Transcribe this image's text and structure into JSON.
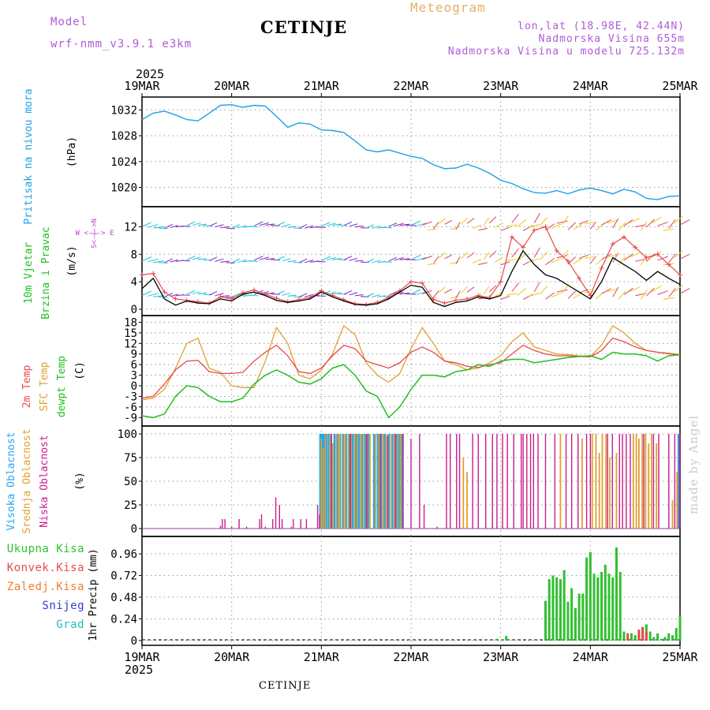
{
  "header": {
    "model_label": "Model",
    "model_run": "wrf-nmm_v3.9.1  e3km",
    "title": "CETINJE",
    "product": "Meteogram",
    "coords": "lon,lat (18.98E, 42.44N)",
    "elevation": "Nadmorska Visina 655m",
    "model_elevation": "Nadmorska Visina u modelu 725.132m"
  },
  "footer": {
    "station": "CETINJE"
  },
  "credit": "made by Angel",
  "colors": {
    "pressure": "#1ea0e6",
    "temp2m": "#e84a4a",
    "sfc": "#e0a030",
    "dewpt": "#20c020",
    "high_cloud": "#20a8f0",
    "mid_cloud": "#e0a030",
    "low_cloud": "#c81e8c",
    "total_precip": "#30c030",
    "conv_precip": "#e84a4a",
    "frozen_precip": "#f08030",
    "snow": "#3838e0",
    "hail": "#20c0c0",
    "wind_label": "#20c020",
    "compass": "#c040d0"
  },
  "chart_data": [
    {
      "type": "line",
      "name": "pressure",
      "year": "2025",
      "days": [
        "19MAR",
        "20MAR",
        "21MAR",
        "22MAR",
        "23MAR",
        "24MAR",
        "25MAR"
      ],
      "ylabel_left": "Pritisak na nivou mora",
      "unit": "(hPa)",
      "yticks": [
        1020,
        1024,
        1028,
        1032
      ],
      "ylim": [
        1017.5,
        1033.5
      ],
      "x_hours": [
        0,
        3,
        6,
        9,
        12,
        15,
        18,
        21,
        24,
        27,
        30,
        33,
        36,
        39,
        42,
        45,
        48,
        51,
        54,
        57,
        60,
        63,
        66,
        69,
        72,
        75,
        78,
        81,
        84,
        87,
        90,
        93,
        96,
        99,
        102,
        105,
        108,
        111,
        114,
        117,
        120,
        123,
        126,
        129,
        132,
        135,
        138,
        141,
        144
      ],
      "series": [
        {
          "name": "MSLP",
          "values": [
            1030.5,
            1031.5,
            1031.8,
            1031.2,
            1030.5,
            1030.3,
            1031.5,
            1032.7,
            1032.8,
            1032.4,
            1032.7,
            1032.6,
            1031.0,
            1029.3,
            1030.0,
            1029.8,
            1028.9,
            1028.8,
            1028.5,
            1027.2,
            1025.8,
            1025.5,
            1025.8,
            1025.3,
            1024.8,
            1024.5,
            1023.5,
            1022.9,
            1023.0,
            1023.6,
            1023.0,
            1022.2,
            1021.1,
            1020.6,
            1019.8,
            1019.2,
            1019.1,
            1019.5,
            1019.0,
            1019.6,
            1019.9,
            1019.5,
            1019.0,
            1019.7,
            1019.3,
            1018.3,
            1018.1,
            1018.6,
            1018.7
          ]
        }
      ]
    },
    {
      "type": "line",
      "name": "wind",
      "ylabel_left": "10m Vjetar",
      "ylabel_left2": "Brzina i Pravac",
      "unit": "(m/s)",
      "compass": {
        "n": "N",
        "s": "S",
        "e": "E",
        "w": "W",
        "we": "W <-|-> E",
        "ns": "S<-|->N"
      },
      "yticks": [
        0,
        4,
        8,
        12
      ],
      "ylim": [
        0,
        14
      ],
      "barb_rows": [
        12,
        7,
        2
      ],
      "x_hours": [
        0,
        3,
        6,
        9,
        12,
        15,
        18,
        21,
        24,
        27,
        30,
        33,
        36,
        39,
        42,
        45,
        48,
        51,
        54,
        57,
        60,
        63,
        66,
        69,
        72,
        75,
        78,
        81,
        84,
        87,
        90,
        93,
        96,
        99,
        102,
        105,
        108,
        111,
        114,
        117,
        120,
        123,
        126,
        129,
        132,
        135,
        138,
        141,
        144
      ],
      "series": [
        {
          "name": "wind speed",
          "values": [
            3,
            4.5,
            1.5,
            0.6,
            1.2,
            0.9,
            0.8,
            1.5,
            1.2,
            2.2,
            2.5,
            2.0,
            1.3,
            1.0,
            1.2,
            1.5,
            2.5,
            1.8,
            1.2,
            0.7,
            0.6,
            0.8,
            1.5,
            2.5,
            3.5,
            3.2,
            1.0,
            0.4,
            1.0,
            1.2,
            1.8,
            1.5,
            2,
            5.5,
            8.5,
            6.5,
            5.0,
            4.5,
            3.5,
            2.5,
            1.5,
            4.0,
            7.5,
            6.5,
            5.5,
            4.2,
            5.5,
            4.5,
            3.6
          ]
        },
        {
          "name": "wind gust",
          "values": [
            5,
            5.2,
            2.5,
            1.5,
            1.3,
            1.1,
            0.9,
            1.8,
            1.5,
            2.4,
            2.8,
            2.2,
            1.6,
            1.1,
            1.4,
            1.7,
            2.7,
            2.0,
            1.4,
            0.8,
            0.7,
            1.0,
            1.7,
            2.7,
            4.0,
            3.8,
            1.4,
            0.9,
            1.3,
            1.5,
            2.0,
            1.7,
            4,
            10.5,
            9.0,
            11.5,
            12.0,
            8.5,
            7.0,
            4.5,
            2.0,
            6.0,
            9.5,
            10.5,
            9.0,
            7.5,
            8.0,
            6.5,
            5.0
          ]
        }
      ]
    },
    {
      "type": "line",
      "name": "temperature",
      "ylabel_left": "2m Temp",
      "ylabel_left2": "SFC Temp",
      "ylabel_left3": "dewpt Temp",
      "unit": "(C)",
      "yticks": [
        -9,
        -6,
        -3,
        0,
        3,
        6,
        9,
        12,
        15,
        18
      ],
      "ylim": [
        -10.5,
        19
      ],
      "x_hours": [
        0,
        3,
        6,
        9,
        12,
        15,
        18,
        21,
        24,
        27,
        30,
        33,
        36,
        39,
        42,
        45,
        48,
        51,
        54,
        57,
        60,
        63,
        66,
        69,
        72,
        75,
        78,
        81,
        84,
        87,
        90,
        93,
        96,
        99,
        102,
        105,
        108,
        111,
        114,
        117,
        120,
        123,
        126,
        129,
        132,
        135,
        138,
        141,
        144
      ],
      "series": [
        {
          "name": "2m Temp",
          "values": [
            -3.5,
            -3.0,
            0.5,
            4.5,
            7.0,
            7.2,
            4.0,
            3.5,
            3.5,
            3.8,
            7.0,
            9.5,
            11.5,
            8.5,
            4.0,
            3.5,
            5.0,
            8.5,
            11.5,
            10.5,
            7.0,
            6.0,
            5.0,
            6.5,
            9.5,
            11.0,
            9.5,
            7.0,
            6.5,
            5.5,
            5.2,
            6.0,
            6.5,
            9.0,
            11.5,
            10.0,
            9.0,
            8.5,
            8.5,
            8.3,
            8.2,
            10.0,
            13.5,
            12.5,
            11.0,
            10.0,
            9.5,
            9.2,
            8.8
          ]
        },
        {
          "name": "SFC Temp",
          "values": [
            -4.0,
            -3.5,
            -1.0,
            5.0,
            12.0,
            13.5,
            5.0,
            3.8,
            0.0,
            -0.5,
            -0.5,
            7.0,
            16.5,
            12.0,
            3.0,
            2.0,
            4.5,
            9.0,
            17.0,
            14.5,
            6.5,
            3.0,
            1.0,
            3.5,
            10.5,
            16.5,
            12.0,
            7.0,
            6.0,
            4.5,
            5.0,
            6.5,
            8.5,
            12.5,
            15.0,
            11.0,
            10.0,
            9.0,
            8.8,
            8.5,
            8.3,
            11.5,
            17.0,
            15.0,
            12.0,
            10.0,
            9.5,
            9.0,
            8.6
          ]
        },
        {
          "name": "dewpt Temp",
          "values": [
            -8.5,
            -9.0,
            -8.0,
            -3.0,
            0.0,
            -0.5,
            -3.0,
            -4.5,
            -4.5,
            -3.5,
            0.5,
            3.0,
            4.5,
            3.0,
            1.0,
            0.5,
            2.0,
            5.0,
            6.0,
            3.0,
            -1.5,
            -3.0,
            -9.0,
            -6.0,
            -1.0,
            3.0,
            3.0,
            2.5,
            4.0,
            4.5,
            6.0,
            5.5,
            7.0,
            7.5,
            7.5,
            6.5,
            7.0,
            7.5,
            8.0,
            8.3,
            8.5,
            7.5,
            9.5,
            9.0,
            9.0,
            8.5,
            7.0,
            8.5,
            8.8
          ]
        }
      ]
    },
    {
      "type": "bar",
      "name": "cloud cover",
      "ylabel_left": "Visoka Oblacnost",
      "ylabel_left2": "Srednja Oblacnost",
      "ylabel_left3": "Niska Oblacnost",
      "unit": "(%)",
      "yticks": [
        0,
        25,
        50,
        75,
        100
      ],
      "ylim": [
        -5,
        105
      ],
      "series": [
        {
          "name": "Visoka Oblacnost",
          "x_hours": [
            47.7,
            48.2,
            48.7,
            49.4,
            50.0,
            50.6,
            51.5,
            52.3,
            53.0,
            53.8,
            54.6,
            55.5,
            56.4,
            57.3,
            58.1,
            58.9,
            59.8,
            60.6,
            62.1,
            63.1,
            64.0,
            64.9,
            66.0,
            67.0,
            68.2,
            68.9,
            69.6,
            143.6
          ],
          "values": [
            100,
            100,
            100,
            100,
            100,
            100,
            100,
            100,
            100,
            100,
            100,
            100,
            100,
            100,
            100,
            100,
            100,
            100,
            100,
            100,
            100,
            100,
            100,
            100,
            100,
            100,
            100,
            100
          ]
        },
        {
          "name": "Srednja Oblacnost",
          "x_hours": [
            48.0,
            48.5,
            49.1,
            50.3,
            51.0,
            52.0,
            52.8,
            53.6,
            54.3,
            55.2,
            56.0,
            56.9,
            57.7,
            58.6,
            59.4,
            60.3,
            61.0,
            62.5,
            63.5,
            64.4,
            65.3,
            66.4,
            67.5,
            68.5,
            69.2,
            86.0,
            87.0,
            112.0,
            117.8,
            120.5,
            121.5,
            122.4,
            123.2,
            124.2,
            125.2,
            127.0,
            131.5,
            132.3,
            133.0,
            133.9,
            134.8,
            135.6,
            136.4,
            137.7,
            142.0,
            143.2
          ],
          "values": [
            95,
            85,
            100,
            100,
            90,
            100,
            100,
            100,
            100,
            100,
            100,
            100,
            100,
            100,
            100,
            100,
            100,
            100,
            100,
            100,
            100,
            100,
            100,
            100,
            100,
            75,
            60,
            100,
            95,
            100,
            100,
            80,
            100,
            100,
            75,
            80,
            100,
            100,
            95,
            100,
            100,
            90,
            100,
            90,
            30,
            60
          ]
        },
        {
          "name": "Niska Oblacnost",
          "x_hours": [
            21.0,
            21.5,
            22.2,
            24.0,
            26.0,
            28.0,
            31.5,
            32.0,
            33.0,
            35.0,
            35.8,
            36.8,
            37.5,
            40.0,
            40.5,
            42.5,
            44.0,
            47.0,
            47.5,
            50.7,
            55.8,
            60.2,
            63.8,
            65.7,
            67.8,
            69.9,
            72.0,
            74.3,
            75.5,
            79.0,
            81.5,
            82.5,
            84.2,
            85.0,
            88.5,
            90.0,
            92.0,
            93.8,
            95.0,
            96.5,
            97.8,
            99.5,
            101.5,
            102.0,
            103.0,
            104.0,
            104.8,
            106.0,
            108.0,
            110.5,
            113.5,
            115.0,
            116.7,
            119.0,
            120.0,
            124.6,
            125.9,
            127.8,
            128.6,
            129.6,
            130.7,
            134.3,
            136.9,
            138.3,
            141.0,
            142.6,
            143.9
          ],
          "values": [
            3,
            10,
            10,
            2,
            10,
            2,
            10,
            15,
            2,
            10,
            33,
            25,
            10,
            2,
            10,
            10,
            10,
            25,
            15,
            100,
            100,
            100,
            100,
            98,
            100,
            100,
            95,
            100,
            25,
            2,
            100,
            100,
            100,
            100,
            100,
            100,
            100,
            100,
            100,
            100,
            100,
            100,
            100,
            100,
            100,
            100,
            100,
            100,
            100,
            100,
            100,
            100,
            100,
            100,
            100,
            100,
            100,
            100,
            100,
            100,
            100,
            100,
            100,
            100,
            100,
            100,
            100
          ]
        }
      ]
    },
    {
      "type": "bar",
      "name": "precipitation",
      "legend": [
        "Ukupna Kisa",
        "Konvek.Kisa",
        "Zaledj.Kisa",
        "Snijeg",
        "Grad"
      ],
      "ylabel_left": "1hr Precip (mm)",
      "yticks": [
        0,
        0.24,
        0.48,
        0.72,
        0.96
      ],
      "yticklabels": [
        "0",
        "0.24",
        "0.48",
        "0.72",
        "0.96"
      ],
      "ylim": [
        0,
        1.1
      ],
      "series": [
        {
          "name": "Ukupna Kisa",
          "x_hours": [
            92.0,
            95.0,
            96.5,
            97.5,
            108.0,
            109.0,
            110.0,
            111.0,
            112.0,
            113.0,
            114.0,
            115.0,
            116.0,
            117.0,
            118.0,
            119.0,
            120.0,
            121.0,
            122.0,
            123.0,
            124.0,
            125.0,
            126.0,
            127.0,
            128.0,
            129.0,
            130.0,
            131.0,
            132.0,
            133.0,
            134.0,
            135.0,
            136.0,
            137.0,
            138.0,
            139.0,
            140.0,
            141.0,
            142.0,
            143.0,
            144.0
          ],
          "values": [
            0.01,
            0.02,
            0.01,
            0.05,
            0.44,
            0.68,
            0.72,
            0.7,
            0.68,
            0.78,
            0.43,
            0.58,
            0.36,
            0.52,
            0.52,
            0.92,
            0.98,
            0.74,
            0.7,
            0.76,
            0.84,
            0.74,
            0.7,
            1.03,
            0.76,
            0.1,
            0.02,
            0.08,
            0.06,
            0.12,
            0.15,
            0.18,
            0.1,
            0.04,
            0.08,
            0.02,
            0.04,
            0.08,
            0.06,
            0.14,
            0.28
          ]
        },
        {
          "name": "Konvek.Kisa",
          "x_hours": [
            130.0,
            133.0,
            134.0,
            135.0
          ],
          "values": [
            0.08,
            0.12,
            0.15,
            0.1
          ]
        }
      ]
    }
  ]
}
